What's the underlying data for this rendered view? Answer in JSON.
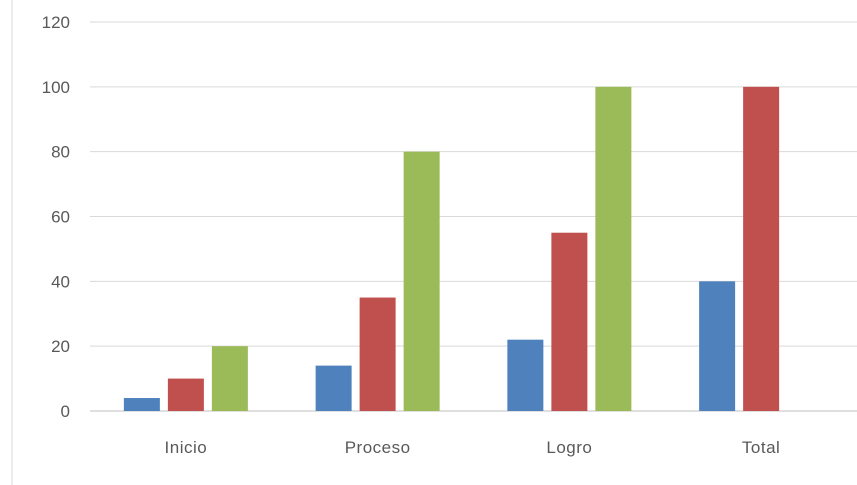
{
  "chart_data": {
    "type": "bar",
    "categories": [
      "Inicio",
      "Proceso",
      "Logro",
      "Total"
    ],
    "series": [
      {
        "values": [
          4,
          14,
          22,
          40
        ],
        "color": "#4f81bd"
      },
      {
        "values": [
          10,
          35,
          55,
          100
        ],
        "color": "#c0504d"
      },
      {
        "values": [
          20,
          80,
          100,
          null
        ],
        "color": "#9bbb59"
      }
    ],
    "ylim": [
      0,
      120
    ],
    "yticks": [
      0,
      20,
      40,
      60,
      80,
      100,
      120
    ],
    "grid": true,
    "legend": "none"
  }
}
